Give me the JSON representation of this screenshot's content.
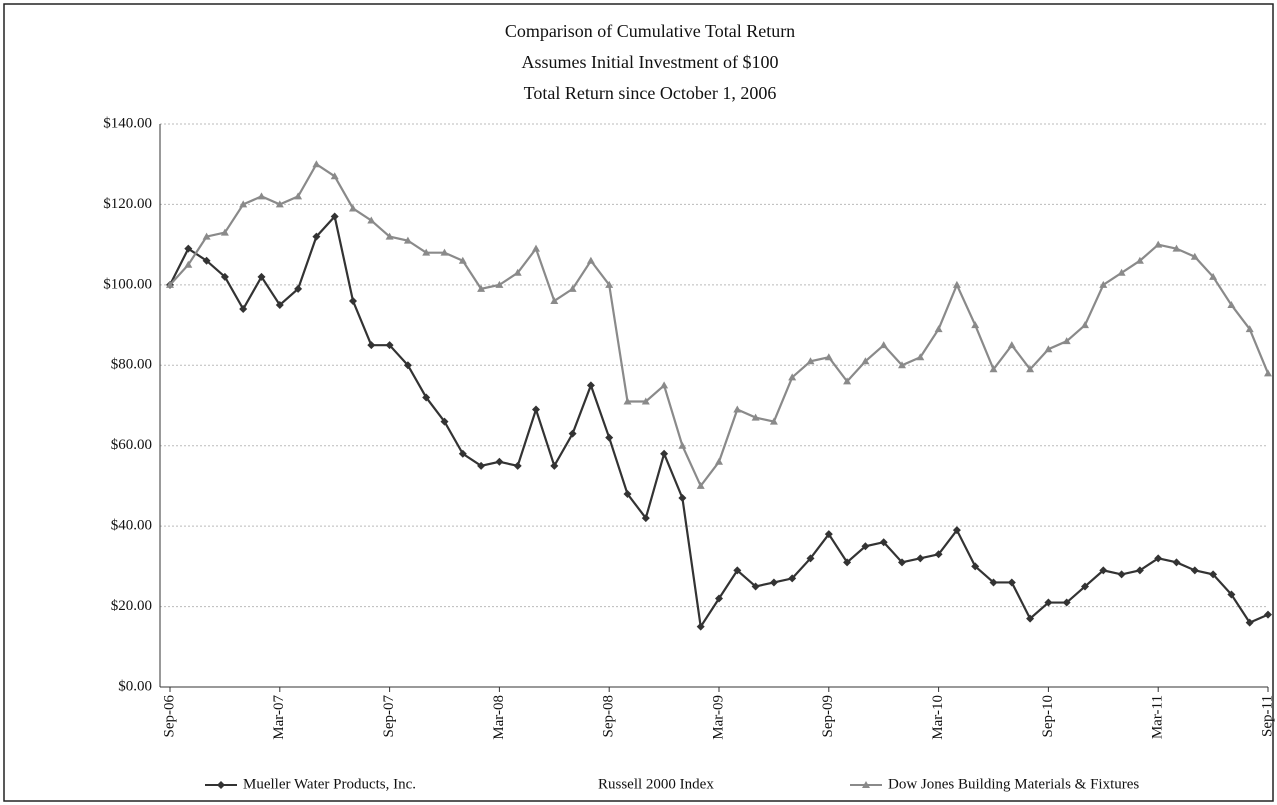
{
  "chart_data": {
    "type": "line",
    "title": [
      "Comparison of Cumulative Total Return",
      "Assumes Initial Investment of $100",
      "Total Return since October 1, 2006"
    ],
    "categories": [
      "Sep-06",
      null,
      null,
      null,
      null,
      null,
      "Mar-07",
      null,
      null,
      null,
      null,
      null,
      "Sep-07",
      null,
      null,
      null,
      null,
      null,
      "Mar-08",
      null,
      null,
      null,
      null,
      null,
      "Sep-08",
      null,
      null,
      null,
      null,
      null,
      "Mar-09",
      null,
      null,
      null,
      null,
      null,
      "Sep-09",
      null,
      null,
      null,
      null,
      null,
      "Mar-10",
      null,
      null,
      null,
      null,
      null,
      "Sep-10",
      null,
      null,
      null,
      null,
      null,
      "Mar-11",
      null,
      null,
      null,
      null,
      null,
      "Sep-11"
    ],
    "series": [
      {
        "name": "Mueller Water Products, Inc.",
        "color": "#333333",
        "marker": "diamond",
        "values": [
          100,
          109,
          106,
          102,
          94,
          102,
          95,
          99,
          112,
          117,
          96,
          85,
          85,
          80,
          72,
          66,
          58,
          55,
          56,
          55,
          69,
          55,
          63,
          75,
          62,
          48,
          42,
          58,
          47,
          15,
          22,
          29,
          25,
          26,
          27,
          32,
          38,
          31,
          35,
          36,
          31,
          32,
          33,
          39,
          30,
          26,
          26,
          17,
          21,
          21,
          25,
          29,
          28,
          29,
          32,
          31,
          29,
          28,
          23,
          16,
          18
        ]
      },
      {
        "name": "Russell 2000 Index",
        "color": "#ffffff",
        "marker": "none",
        "values": [
          null,
          null,
          null,
          null,
          null,
          null,
          null,
          null,
          null,
          null,
          null,
          null,
          null,
          null,
          null,
          null,
          null,
          null,
          null,
          null,
          null,
          null,
          null,
          null,
          null,
          null,
          null,
          null,
          null,
          null,
          null,
          null,
          null,
          null,
          null,
          null,
          null,
          null,
          null,
          null,
          null,
          null,
          null,
          null,
          null,
          null,
          null,
          null,
          null,
          null,
          null,
          null,
          null,
          null,
          null,
          null,
          null,
          null,
          null,
          null,
          null
        ]
      },
      {
        "name": "Dow Jones Building Materials & Fixtures",
        "color": "#8a8a8a",
        "marker": "triangle",
        "values": [
          100,
          105,
          112,
          113,
          120,
          122,
          120,
          122,
          130,
          127,
          119,
          116,
          112,
          111,
          108,
          108,
          106,
          99,
          100,
          103,
          109,
          96,
          99,
          106,
          100,
          71,
          71,
          75,
          60,
          50,
          56,
          69,
          67,
          66,
          77,
          81,
          82,
          76,
          81,
          85,
          80,
          82,
          89,
          100,
          90,
          79,
          85,
          79,
          84,
          86,
          90,
          100,
          103,
          106,
          110,
          109,
          107,
          102,
          95,
          89,
          78
        ]
      }
    ],
    "ylim": [
      0,
      140
    ],
    "yticks": [
      {
        "value": 0,
        "label": "$0.00"
      },
      {
        "value": 20,
        "label": "$20.00"
      },
      {
        "value": 40,
        "label": "$40.00"
      },
      {
        "value": 60,
        "label": "$60.00"
      },
      {
        "value": 80,
        "label": "$80.00"
      },
      {
        "value": 100,
        "label": "$100.00"
      },
      {
        "value": 120,
        "label": "$120.00"
      },
      {
        "value": 140,
        "label": "$140.00"
      }
    ],
    "grid": true
  }
}
